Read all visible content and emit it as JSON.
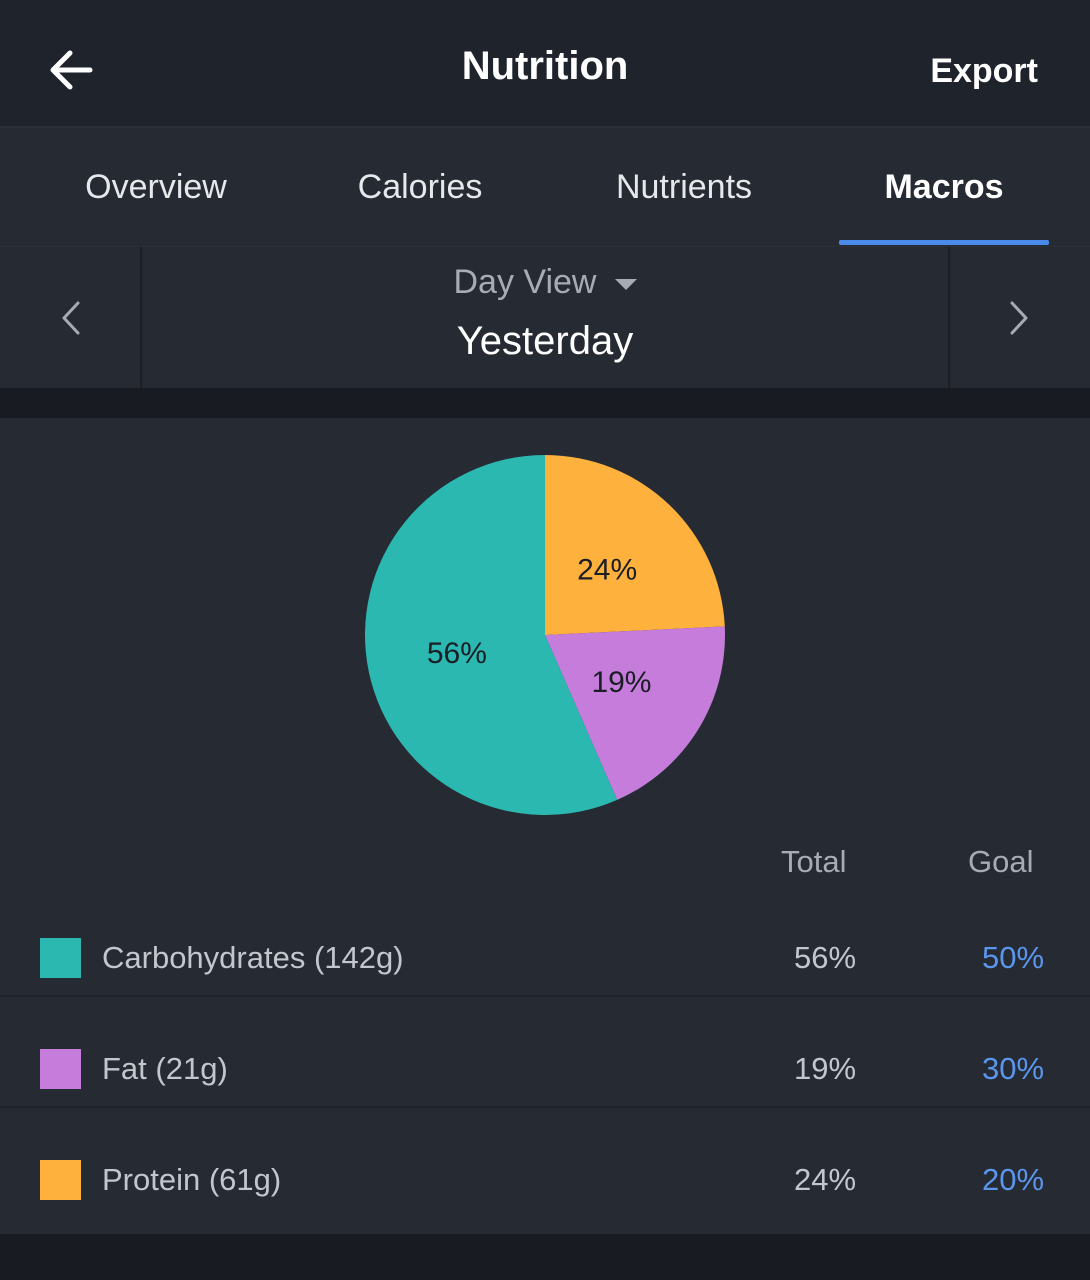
{
  "header": {
    "title": "Nutrition",
    "export_label": "Export"
  },
  "tabs": [
    {
      "label": "Overview",
      "active": false
    },
    {
      "label": "Calories",
      "active": false
    },
    {
      "label": "Nutrients",
      "active": false
    },
    {
      "label": "Macros",
      "active": true
    }
  ],
  "date_nav": {
    "view_label": "Day View",
    "date_label": "Yesterday"
  },
  "chart_data": {
    "type": "pie",
    "slices": [
      {
        "name": "Protein",
        "value": 24,
        "label": "24%",
        "color": "#FFB13E"
      },
      {
        "name": "Fat",
        "value": 19,
        "label": "19%",
        "color": "#C57CDB"
      },
      {
        "name": "Carbohydrates",
        "value": 56,
        "label": "56%",
        "color": "#2AB8B0"
      }
    ]
  },
  "table": {
    "columns": {
      "total": "Total",
      "goal": "Goal"
    },
    "rows": [
      {
        "label": "Carbohydrates (142g)",
        "total": "56%",
        "goal": "50%",
        "color": "#2AB8B0"
      },
      {
        "label": "Fat (21g)",
        "total": "19%",
        "goal": "30%",
        "color": "#C57CDB"
      },
      {
        "label": "Protein (61g)",
        "total": "24%",
        "goal": "20%",
        "color": "#FFB13E"
      }
    ]
  }
}
